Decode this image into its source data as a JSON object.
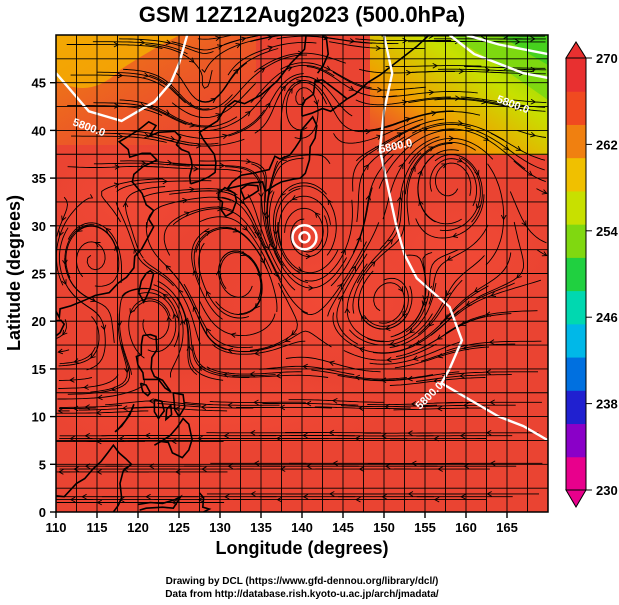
{
  "title": "GSM 12Z12Aug2023 (500.0hPa)",
  "x_axis_label": "Longitude (degrees)",
  "y_axis_label": "Latitude  (degrees)",
  "x_ticks": [
    "110",
    "115",
    "120",
    "125",
    "130",
    "135",
    "140",
    "145",
    "150",
    "155",
    "160",
    "165"
  ],
  "y_ticks": [
    "0",
    "5",
    "10",
    "15",
    "20",
    "25",
    "30",
    "35",
    "40",
    "45"
  ],
  "colorbar": {
    "ticks": [
      "270",
      "262",
      "254",
      "246",
      "238",
      "230"
    ],
    "colors": [
      "#e8008c",
      "#8a00c8",
      "#2020d0",
      "#0070e0",
      "#00b8e8",
      "#00d8b0",
      "#20d040",
      "#80d810",
      "#c8e000",
      "#f0c000",
      "#f08010",
      "#f04a20",
      "#e83030"
    ]
  },
  "contour_labels": [
    "5800.0",
    "5800.0",
    "5800.0",
    "5800.0"
  ],
  "credits": {
    "line1": "Drawing by DCL (https://www.gfd-dennou.org/library/dcl/)",
    "line2": "Data from http://database.rish.kyoto-u.ac.jp/arch/jmadata/"
  },
  "map": {
    "lon_range": [
      110,
      170
    ],
    "lat_range": [
      0,
      50
    ],
    "typhoon_center": {
      "lon": 140.3,
      "lat": 28.8
    }
  }
}
